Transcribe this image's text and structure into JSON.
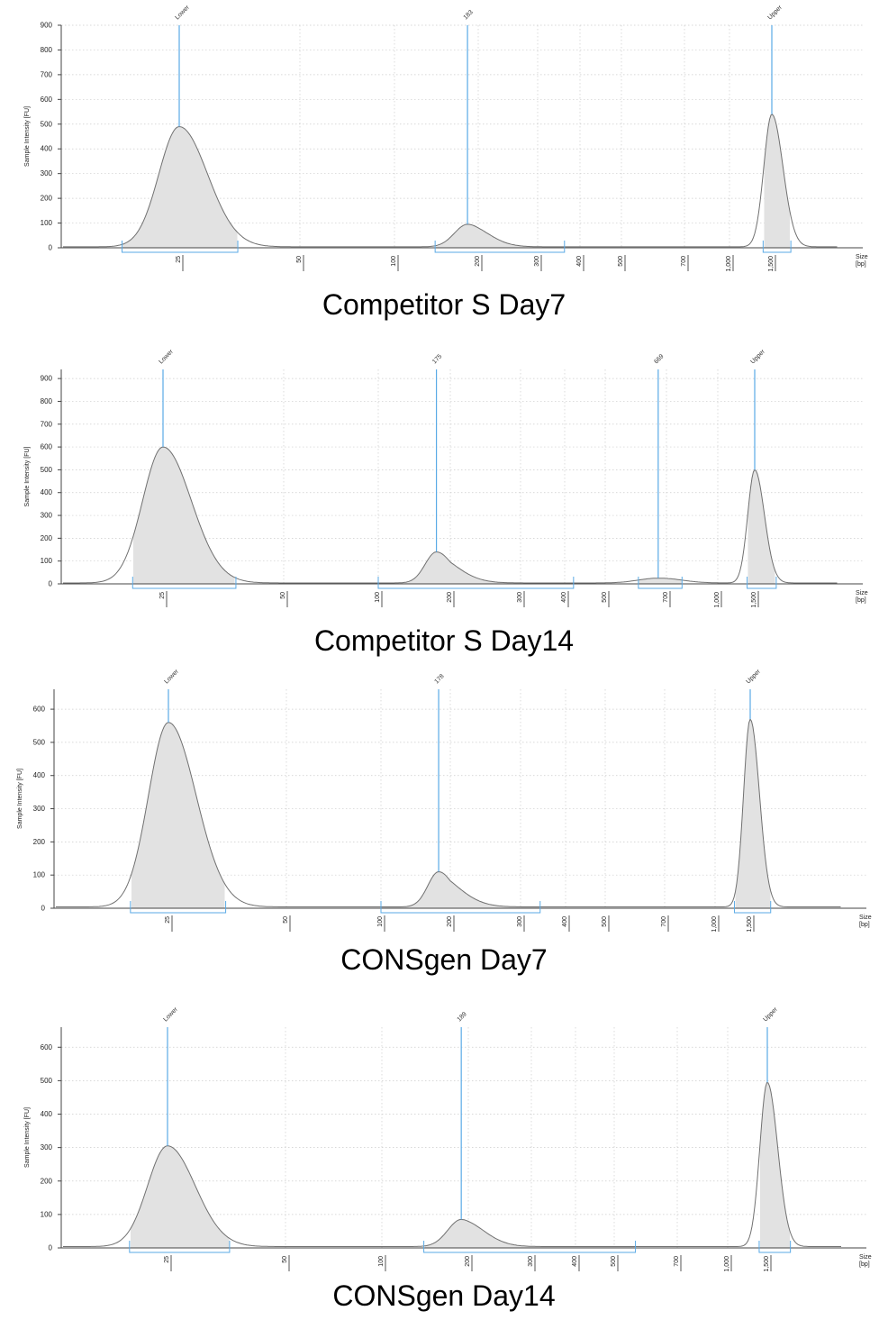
{
  "ylabel": "Sample Intensity [FU]",
  "xlabel": "Size\n[bp]",
  "colors": {
    "trace": "#707070",
    "fill": "#e2e2e2",
    "marker": "#5aaae6",
    "grid": "#cccccc",
    "axis": "#444444"
  },
  "chart_data": [
    {
      "type": "area",
      "caption": "Competitor S Day7",
      "ylabel": "Sample Intensity [FU]",
      "xlabel": "Size\n[bp]",
      "x_ticks": [
        "25",
        "50",
        "100",
        "200",
        "300",
        "400",
        "500",
        "700",
        "1,000",
        "1,500"
      ],
      "y_ticks": [
        0,
        100,
        200,
        300,
        400,
        500,
        600,
        700,
        800,
        900
      ],
      "ylim": [
        0,
        900
      ],
      "grid": true,
      "markers": [
        {
          "label": "Lower",
          "x": 25
        },
        {
          "label": "183",
          "x": 183
        },
        {
          "label": "Upper",
          "x": 1500
        }
      ],
      "regions": [
        [
          18,
          35
        ],
        [
          140,
          360
        ],
        [
          1380,
          1800
        ]
      ],
      "peaks": [
        {
          "x": 25,
          "y": 490
        },
        {
          "x": 183,
          "y": 95
        },
        {
          "x": 1500,
          "y": 540
        }
      ]
    },
    {
      "type": "area",
      "caption": "Competitor S Day14",
      "ylabel": "Sample Intensity [FU]",
      "xlabel": "Size\n[bp]",
      "x_ticks": [
        "25",
        "50",
        "100",
        "200",
        "300",
        "400",
        "500",
        "700",
        "1,000",
        "1,500"
      ],
      "y_ticks": [
        0,
        100,
        200,
        300,
        400,
        500,
        600,
        700,
        800,
        900
      ],
      "ylim": [
        0,
        940
      ],
      "grid": true,
      "markers": [
        {
          "label": "Lower",
          "x": 25
        },
        {
          "label": "175",
          "x": 175
        },
        {
          "label": "669",
          "x": 669
        },
        {
          "label": "Upper",
          "x": 1500
        }
      ],
      "regions": [
        [
          21,
          38
        ],
        [
          100,
          420
        ],
        [
          600,
          780
        ],
        [
          1380,
          1900
        ]
      ],
      "peaks": [
        {
          "x": 25,
          "y": 600
        },
        {
          "x": 175,
          "y": 140
        },
        {
          "x": 669,
          "y": 25
        },
        {
          "x": 1500,
          "y": 500
        }
      ]
    },
    {
      "type": "area",
      "caption": "CONSgen Day7",
      "ylabel": "Sample Intensity [FU]",
      "xlabel": "Size\n[bp]",
      "x_ticks": [
        "25",
        "50",
        "100",
        "200",
        "300",
        "400",
        "500",
        "700",
        "1,000",
        "1,500"
      ],
      "y_ticks": [
        0,
        100,
        200,
        300,
        400,
        500,
        600
      ],
      "ylim": [
        0,
        660
      ],
      "grid": true,
      "markers": [
        {
          "label": "Lower",
          "x": 25
        },
        {
          "label": "178",
          "x": 178
        },
        {
          "label": "Upper",
          "x": 1500
        }
      ],
      "regions": [
        [
          20,
          35
        ],
        [
          100,
          340
        ],
        [
          1250,
          1900
        ]
      ],
      "peaks": [
        {
          "x": 25,
          "y": 560
        },
        {
          "x": 178,
          "y": 110
        },
        {
          "x": 1500,
          "y": 570
        }
      ]
    },
    {
      "type": "area",
      "caption": "CONSgen Day14",
      "ylabel": "Sample Intensity [FU]",
      "xlabel": "Size\n[bp]",
      "x_ticks": [
        "25",
        "50",
        "100",
        "200",
        "300",
        "400",
        "500",
        "700",
        "1,000",
        "1,500"
      ],
      "y_ticks": [
        0,
        100,
        200,
        300,
        400,
        500,
        600
      ],
      "ylim": [
        0,
        660
      ],
      "grid": true,
      "markers": [
        {
          "label": "Lower",
          "x": 25
        },
        {
          "label": "189",
          "x": 189
        },
        {
          "label": "Upper",
          "x": 1500
        }
      ],
      "regions": [
        [
          20,
          36
        ],
        [
          140,
          560
        ],
        [
          1380,
          1900
        ]
      ],
      "peaks": [
        {
          "x": 25,
          "y": 305
        },
        {
          "x": 189,
          "y": 85
        },
        {
          "x": 1500,
          "y": 495
        }
      ]
    }
  ]
}
